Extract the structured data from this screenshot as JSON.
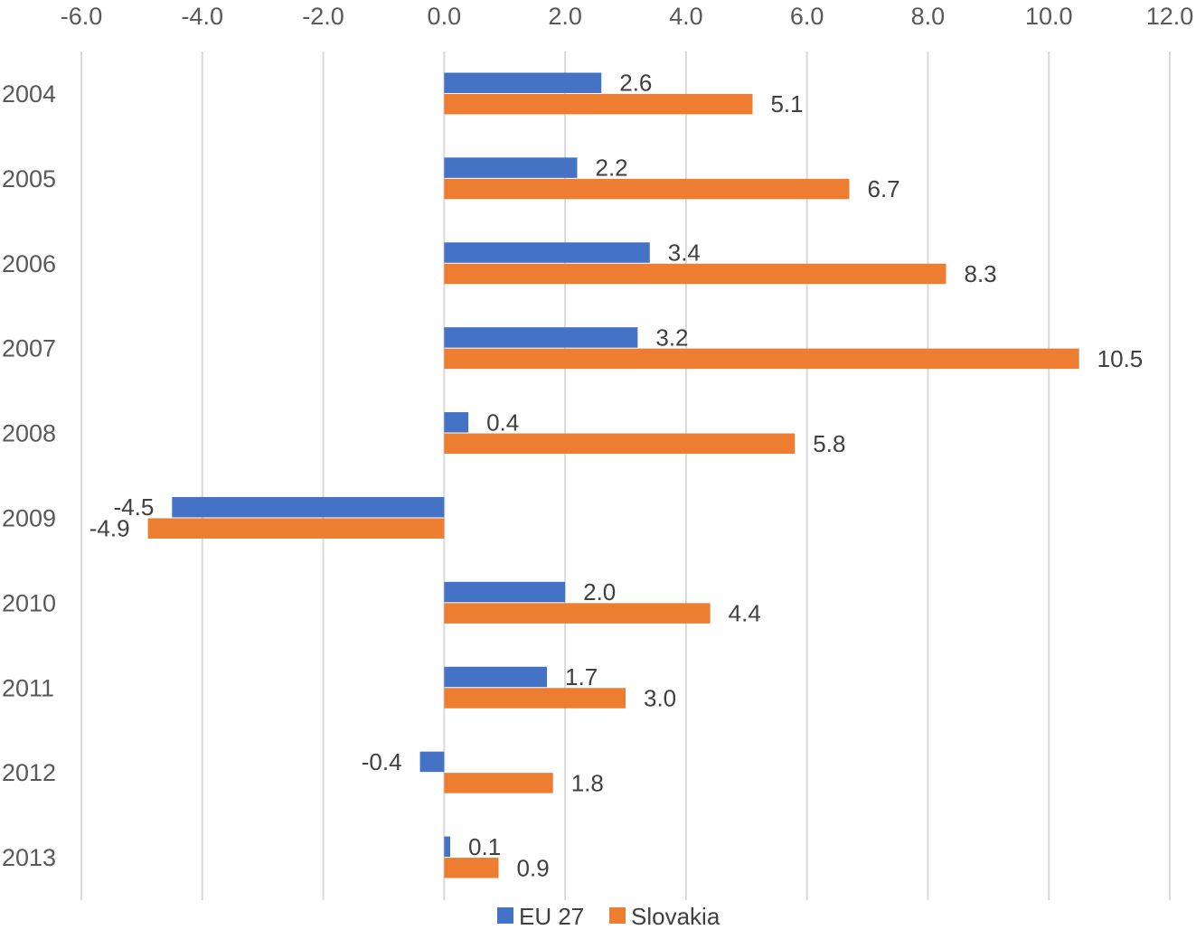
{
  "chart_data": {
    "type": "bar",
    "orientation": "horizontal",
    "title": "",
    "xlabel": "",
    "ylabel": "",
    "xlim": [
      -6,
      12
    ],
    "x_ticks": [
      -6,
      -4,
      -2,
      0,
      2,
      4,
      6,
      8,
      10,
      12
    ],
    "x_tick_labels": [
      "-6.0",
      "-4.0",
      "-2.0",
      "0.0",
      "2.0",
      "4.0",
      "6.0",
      "8.0",
      "10.0",
      "12.0"
    ],
    "axis_position": "top",
    "grid": true,
    "categories": [
      "2004",
      "2005",
      "2006",
      "2007",
      "2008",
      "2009",
      "2010",
      "2011",
      "2012",
      "2013"
    ],
    "series": [
      {
        "name": "EU 27",
        "color": "#4472C4",
        "values": [
          2.6,
          2.2,
          3.4,
          3.2,
          0.4,
          -4.5,
          2.0,
          1.7,
          -0.4,
          0.1
        ],
        "labels": [
          "2.6",
          "2.2",
          "3.4",
          "3.2",
          "0.4",
          "-4.5",
          "2.0",
          "1.7",
          "-0.4",
          "0.1"
        ]
      },
      {
        "name": "Slovakia",
        "color": "#ED7D31",
        "values": [
          5.1,
          6.7,
          8.3,
          10.5,
          5.8,
          -4.9,
          4.4,
          3.0,
          1.8,
          0.9
        ],
        "labels": [
          "5.1",
          "6.7",
          "8.3",
          "10.5",
          "5.8",
          "-4.9",
          "4.4",
          "3.0",
          "1.8",
          "0.9"
        ]
      }
    ],
    "legend_position": "bottom"
  }
}
